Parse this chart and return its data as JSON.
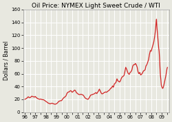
{
  "title": "Oil Price: NYMEX Light Sweet Crude / WTI",
  "ylabel": "Dollars / Barrel",
  "ylim": [
    0,
    160
  ],
  "yticks": [
    0,
    20,
    40,
    60,
    80,
    100,
    120,
    140,
    160
  ],
  "line_color": "#cc0000",
  "background_color": "#e8e8e0",
  "grid_color": "#ffffff",
  "title_fontsize": 6.5,
  "label_fontsize": 5.5,
  "tick_fontsize": 5.0,
  "prices": [
    [
      1996.0,
      20.0
    ],
    [
      1996.08,
      20.5
    ],
    [
      1996.17,
      21.5
    ],
    [
      1996.25,
      22.5
    ],
    [
      1996.33,
      24.0
    ],
    [
      1996.42,
      23.0
    ],
    [
      1996.5,
      22.5
    ],
    [
      1996.58,
      23.5
    ],
    [
      1996.67,
      25.0
    ],
    [
      1996.75,
      24.5
    ],
    [
      1996.83,
      24.0
    ],
    [
      1996.92,
      23.5
    ],
    [
      1997.0,
      24.5
    ],
    [
      1997.08,
      23.0
    ],
    [
      1997.17,
      22.0
    ],
    [
      1997.25,
      21.0
    ],
    [
      1997.33,
      20.5
    ],
    [
      1997.42,
      20.0
    ],
    [
      1997.5,
      20.5
    ],
    [
      1997.58,
      20.0
    ],
    [
      1997.67,
      19.5
    ],
    [
      1997.75,
      19.5
    ],
    [
      1997.83,
      19.0
    ],
    [
      1997.92,
      18.0
    ],
    [
      1998.0,
      17.0
    ],
    [
      1998.08,
      16.0
    ],
    [
      1998.17,
      15.0
    ],
    [
      1998.25,
      14.0
    ],
    [
      1998.33,
      13.5
    ],
    [
      1998.42,
      13.0
    ],
    [
      1998.5,
      13.5
    ],
    [
      1998.58,
      14.0
    ],
    [
      1998.67,
      13.5
    ],
    [
      1998.75,
      13.0
    ],
    [
      1998.83,
      12.5
    ],
    [
      1998.92,
      12.5
    ],
    [
      1999.0,
      13.0
    ],
    [
      1999.08,
      14.0
    ],
    [
      1999.17,
      15.5
    ],
    [
      1999.25,
      17.0
    ],
    [
      1999.33,
      17.5
    ],
    [
      1999.42,
      18.0
    ],
    [
      1999.5,
      18.0
    ],
    [
      1999.58,
      20.0
    ],
    [
      1999.67,
      22.0
    ],
    [
      1999.75,
      23.0
    ],
    [
      1999.83,
      24.0
    ],
    [
      1999.92,
      25.5
    ],
    [
      2000.0,
      29.0
    ],
    [
      2000.08,
      31.0
    ],
    [
      2000.17,
      31.5
    ],
    [
      2000.25,
      32.0
    ],
    [
      2000.33,
      33.5
    ],
    [
      2000.42,
      33.0
    ],
    [
      2000.5,
      31.0
    ],
    [
      2000.58,
      32.0
    ],
    [
      2000.67,
      33.5
    ],
    [
      2000.75,
      34.5
    ],
    [
      2000.83,
      33.0
    ],
    [
      2000.92,
      30.0
    ],
    [
      2001.0,
      29.5
    ],
    [
      2001.08,
      28.0
    ],
    [
      2001.17,
      27.5
    ],
    [
      2001.25,
      27.5
    ],
    [
      2001.33,
      28.0
    ],
    [
      2001.42,
      27.5
    ],
    [
      2001.5,
      27.0
    ],
    [
      2001.58,
      26.0
    ],
    [
      2001.67,
      23.5
    ],
    [
      2001.75,
      22.0
    ],
    [
      2001.83,
      21.0
    ],
    [
      2001.92,
      20.5
    ],
    [
      2002.0,
      20.0
    ],
    [
      2002.08,
      21.5
    ],
    [
      2002.17,
      24.0
    ],
    [
      2002.25,
      26.5
    ],
    [
      2002.33,
      27.0
    ],
    [
      2002.42,
      27.5
    ],
    [
      2002.5,
      28.0
    ],
    [
      2002.58,
      28.5
    ],
    [
      2002.67,
      29.5
    ],
    [
      2002.75,
      30.5
    ],
    [
      2002.83,
      29.0
    ],
    [
      2002.92,
      31.0
    ],
    [
      2003.0,
      33.0
    ],
    [
      2003.08,
      36.0
    ],
    [
      2003.17,
      33.0
    ],
    [
      2003.25,
      30.0
    ],
    [
      2003.33,
      28.5
    ],
    [
      2003.42,
      29.0
    ],
    [
      2003.5,
      30.0
    ],
    [
      2003.58,
      31.0
    ],
    [
      2003.67,
      31.5
    ],
    [
      2003.75,
      31.0
    ],
    [
      2003.83,
      32.0
    ],
    [
      2003.92,
      33.0
    ],
    [
      2004.0,
      34.0
    ],
    [
      2004.08,
      35.5
    ],
    [
      2004.17,
      37.5
    ],
    [
      2004.25,
      38.0
    ],
    [
      2004.33,
      41.0
    ],
    [
      2004.42,
      39.0
    ],
    [
      2004.5,
      44.0
    ],
    [
      2004.58,
      45.0
    ],
    [
      2004.67,
      47.0
    ],
    [
      2004.75,
      52.0
    ],
    [
      2004.83,
      49.0
    ],
    [
      2004.92,
      48.0
    ],
    [
      2005.0,
      47.0
    ],
    [
      2005.08,
      49.0
    ],
    [
      2005.17,
      53.0
    ],
    [
      2005.25,
      55.0
    ],
    [
      2005.33,
      56.0
    ],
    [
      2005.42,
      57.0
    ],
    [
      2005.5,
      63.0
    ],
    [
      2005.58,
      70.0
    ],
    [
      2005.67,
      67.0
    ],
    [
      2005.75,
      63.0
    ],
    [
      2005.83,
      60.0
    ],
    [
      2005.92,
      59.0
    ],
    [
      2006.0,
      62.0
    ],
    [
      2006.08,
      63.0
    ],
    [
      2006.17,
      66.0
    ],
    [
      2006.25,
      72.0
    ],
    [
      2006.33,
      74.0
    ],
    [
      2006.42,
      74.0
    ],
    [
      2006.5,
      76.0
    ],
    [
      2006.58,
      74.0
    ],
    [
      2006.67,
      70.0
    ],
    [
      2006.75,
      63.0
    ],
    [
      2006.83,
      60.0
    ],
    [
      2006.92,
      62.0
    ],
    [
      2007.0,
      58.0
    ],
    [
      2007.08,
      59.0
    ],
    [
      2007.17,
      61.0
    ],
    [
      2007.25,
      64.0
    ],
    [
      2007.33,
      65.0
    ],
    [
      2007.42,
      66.0
    ],
    [
      2007.5,
      72.0
    ],
    [
      2007.58,
      74.0
    ],
    [
      2007.67,
      78.0
    ],
    [
      2007.75,
      82.0
    ],
    [
      2007.83,
      90.0
    ],
    [
      2007.92,
      96.0
    ],
    [
      2008.0,
      95.0
    ],
    [
      2008.08,
      100.0
    ],
    [
      2008.17,
      105.0
    ],
    [
      2008.25,
      110.0
    ],
    [
      2008.33,
      118.0
    ],
    [
      2008.38,
      125.0
    ],
    [
      2008.42,
      130.0
    ],
    [
      2008.46,
      140.0
    ],
    [
      2008.5,
      145.0
    ],
    [
      2008.54,
      133.0
    ],
    [
      2008.58,
      125.0
    ],
    [
      2008.62,
      118.0
    ],
    [
      2008.67,
      108.0
    ],
    [
      2008.71,
      100.0
    ],
    [
      2008.75,
      95.0
    ],
    [
      2008.79,
      85.0
    ],
    [
      2008.83,
      70.0
    ],
    [
      2008.87,
      58.0
    ],
    [
      2008.92,
      50.0
    ],
    [
      2008.96,
      42.0
    ],
    [
      2009.0,
      40.0
    ],
    [
      2009.04,
      38.5
    ],
    [
      2009.08,
      37.0
    ],
    [
      2009.13,
      38.0
    ],
    [
      2009.17,
      40.0
    ],
    [
      2009.21,
      43.0
    ],
    [
      2009.25,
      46.0
    ],
    [
      2009.29,
      49.0
    ],
    [
      2009.33,
      52.0
    ],
    [
      2009.38,
      56.0
    ],
    [
      2009.42,
      60.0
    ],
    [
      2009.46,
      64.0
    ],
    [
      2009.5,
      68.0
    ],
    [
      2009.54,
      70.0
    ]
  ],
  "xtick_positions": [
    1996.0,
    1996.5,
    1997.0,
    1997.5,
    1998.0,
    1998.5,
    1999.0,
    1999.5,
    2000.0,
    2000.5,
    2001.0,
    2001.5,
    2002.0,
    2002.5,
    2003.0,
    2003.5,
    2004.0,
    2004.5,
    2005.0,
    2005.5,
    2006.0,
    2006.5,
    2007.0,
    2007.5,
    2008.0,
    2008.5,
    2009.0,
    2009.5
  ],
  "xtick_labels": [
    "96",
    "",
    "97",
    "",
    "98",
    "",
    "99",
    "",
    "00",
    "",
    "01",
    "",
    "02",
    "",
    "03",
    "",
    "04",
    "",
    "05",
    "",
    "06",
    "",
    "07",
    "",
    "08",
    "",
    "09",
    ""
  ],
  "xlim": [
    1995.85,
    2009.7
  ]
}
